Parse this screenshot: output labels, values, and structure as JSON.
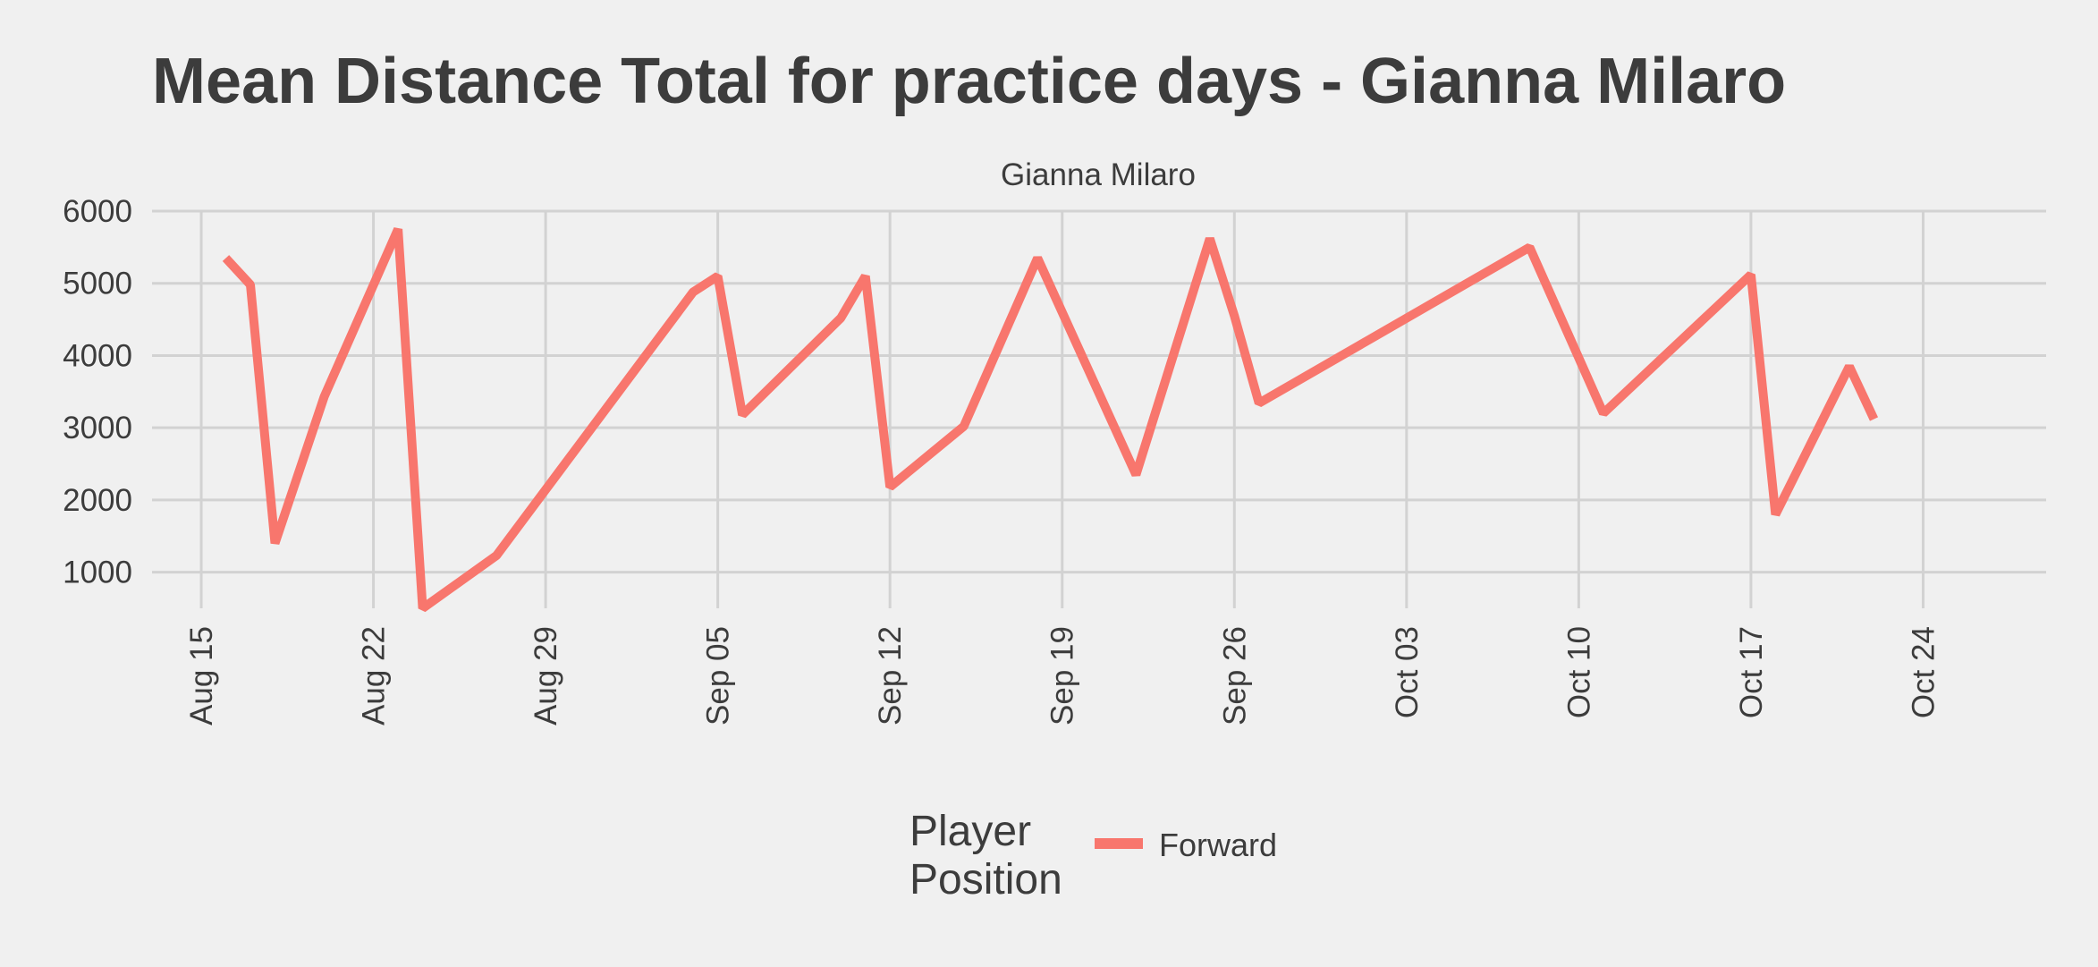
{
  "chart_data": {
    "type": "line",
    "title": "Mean Distance Total for practice days -  Gianna Milaro",
    "facet_label": "Gianna Milaro",
    "xlabel": "",
    "ylabel": "",
    "x_ticks": [
      "Aug 15",
      "Aug 22",
      "Aug 29",
      "Sep 05",
      "Sep 12",
      "Sep 19",
      "Sep 26",
      "Oct 03",
      "Oct 10",
      "Oct 17",
      "Oct 24"
    ],
    "y_ticks": [
      1000,
      2000,
      3000,
      4000,
      5000,
      6000
    ],
    "xlim": [
      "2022-08-13",
      "2022-10-29"
    ],
    "ylim": [
      500,
      6000
    ],
    "grid": true,
    "legend": {
      "title_lines": [
        "Player",
        "Position"
      ],
      "placement": "bottom"
    },
    "series": [
      {
        "name": "Forward",
        "color": "#f8766d",
        "points": [
          [
            "2022-08-16",
            5350
          ],
          [
            "2022-08-17",
            4980
          ],
          [
            "2022-08-18",
            1400
          ],
          [
            "2022-08-20",
            3430
          ],
          [
            "2022-08-23",
            5750
          ],
          [
            "2022-08-24",
            500
          ],
          [
            "2022-08-27",
            1230
          ],
          [
            "2022-09-04",
            4880
          ],
          [
            "2022-09-05",
            5100
          ],
          [
            "2022-09-06",
            3180
          ],
          [
            "2022-09-10",
            4520
          ],
          [
            "2022-09-11",
            5100
          ],
          [
            "2022-09-12",
            2180
          ],
          [
            "2022-09-15",
            3020
          ],
          [
            "2022-09-18",
            5350
          ],
          [
            "2022-09-22",
            2350
          ],
          [
            "2022-09-25",
            5620
          ],
          [
            "2022-09-26",
            4550
          ],
          [
            "2022-09-27",
            3340
          ],
          [
            "2022-10-08",
            5500
          ],
          [
            "2022-10-11",
            3200
          ],
          [
            "2022-10-17",
            5120
          ],
          [
            "2022-10-18",
            1800
          ],
          [
            "2022-10-21",
            3850
          ],
          [
            "2022-10-22",
            3120
          ]
        ]
      }
    ]
  }
}
